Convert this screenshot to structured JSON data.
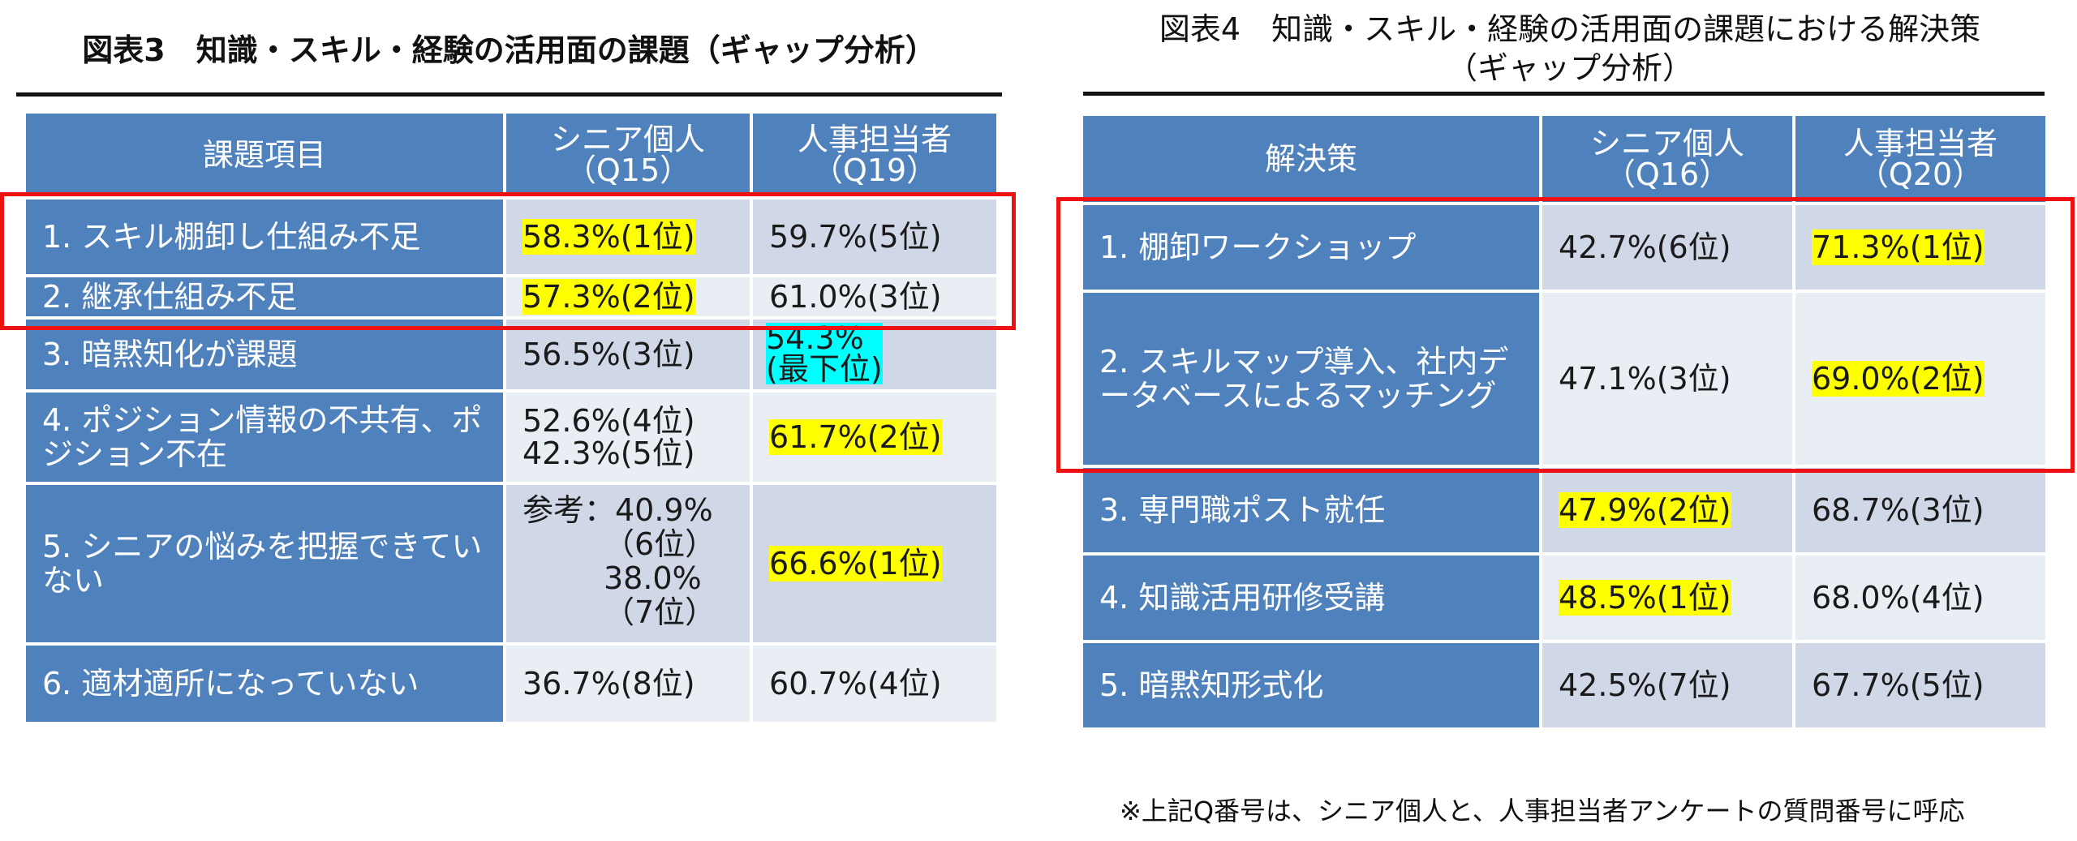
{
  "left": {
    "title": "図表3　知識・スキル・経験の活用面の課題（ギャップ分析）",
    "headers": [
      "課題項目",
      "シニア個人\n（Q15）",
      "人事担当者\n（Q19）"
    ],
    "rows": [
      {
        "item": "1. スキル棚卸し仕組み不足",
        "senior": "58.3%(1位)",
        "hr": "59.7%(5位)"
      },
      {
        "item": "2. 継承仕組み不足",
        "senior": "57.3%(2位)",
        "hr": "61.0%(3位)"
      },
      {
        "item": "3. 暗黙知化が課題",
        "senior": "56.5%(3位)",
        "hr": "54.3%\n(最下位)"
      },
      {
        "item": "4. ポジション情報の不共有、ポジション不在",
        "senior": "52.6%(4位)\n42.3%(5位)",
        "hr": "61.7%(2位)"
      },
      {
        "item": "5. シニアの悩みを把握できていない",
        "senior_ref": "参考：40.9%",
        "senior_sub": [
          "（6位）",
          "38.0%",
          "（7位）"
        ],
        "hr": "66.6%(1位)"
      },
      {
        "item": "6. 適材適所になっていない",
        "senior": "36.7%(8位)",
        "hr": "60.7%(4位)"
      }
    ]
  },
  "right": {
    "title_line1": "図表4　知識・スキル・経験の活用面の課題における解決策",
    "title_line2": "（ギャップ分析）",
    "headers": [
      "解決策",
      "シニア個人\n（Q16）",
      "人事担当者\n（Q20）"
    ],
    "rows": [
      {
        "item": "1. 棚卸ワークショップ",
        "senior": "42.7%(6位)",
        "hr": "71.3%(1位)"
      },
      {
        "item": "2. スキルマップ導入、社内データベースによるマッチング",
        "senior": "47.1%(3位)",
        "hr": "69.0%(2位)"
      },
      {
        "item": "3. 専門職ポスト就任",
        "senior": "47.9%(2位)",
        "hr": "68.7%(3位)"
      },
      {
        "item": "4. 知識活用研修受講",
        "senior": "48.5%(1位)",
        "hr": "68.0%(4位)"
      },
      {
        "item": "5. 暗黙知形式化",
        "senior": "42.5%(7位)",
        "hr": "67.7%(5位)"
      }
    ]
  },
  "footnote": "※上記Q番号は、シニア個人と、人事担当者アンケートの質問番号に呼応",
  "colors": {
    "header_blue": "#4f81bd",
    "row_light": "#d0d8e8",
    "row_lighter": "#e9edf4",
    "highlight_yellow": "#ffff00",
    "highlight_cyan": "#00ffff",
    "red_frame": "#ee1111"
  }
}
